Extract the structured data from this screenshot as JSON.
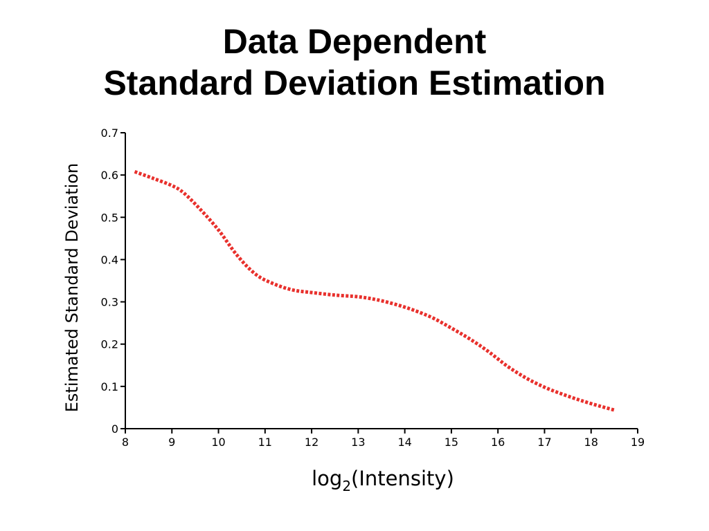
{
  "slide": {
    "title_line1": "Data Dependent",
    "title_line2": "Standard Deviation Estimation"
  },
  "colors": {
    "series": "#e8302c",
    "axis": "#000000"
  },
  "chart_data": {
    "type": "line",
    "title": "Data Dependent Standard Deviation Estimation",
    "xlabel_main": "log",
    "xlabel_sub": "2",
    "xlabel_rest": "(Intensity)",
    "xlabel": "log2(Intensity)",
    "ylabel": "Estimated Standard Deviation",
    "xlim": [
      8,
      19
    ],
    "ylim": [
      0,
      0.7
    ],
    "xticks": [
      8,
      9,
      10,
      11,
      12,
      13,
      14,
      15,
      16,
      17,
      18,
      19
    ],
    "xtick_labels": [
      "8",
      "9",
      "10",
      "11",
      "12",
      "13",
      "14",
      "15",
      "16",
      "17",
      "18",
      "19"
    ],
    "yticks": [
      0,
      0.1,
      0.2,
      0.3,
      0.4,
      0.5,
      0.6,
      0.7
    ],
    "ytick_labels": [
      "0",
      "0.1",
      "0.2",
      "0.3",
      "0.4",
      "0.5",
      "0.6",
      "0.7"
    ],
    "grid": false,
    "series": [
      {
        "name": "Estimated Standard Deviation",
        "line_style": "dotted",
        "x": [
          8.2,
          8.6,
          9.0,
          9.25,
          9.6,
          10.0,
          10.4,
          10.8,
          11.2,
          11.6,
          12.0,
          12.5,
          13.0,
          13.4,
          13.8,
          14.2,
          14.6,
          15.0,
          15.4,
          15.8,
          16.2,
          16.6,
          17.0,
          17.4,
          17.8,
          18.2,
          18.5
        ],
        "y": [
          0.608,
          0.592,
          0.575,
          0.558,
          0.52,
          0.47,
          0.41,
          0.365,
          0.342,
          0.328,
          0.322,
          0.316,
          0.312,
          0.305,
          0.294,
          0.28,
          0.262,
          0.238,
          0.212,
          0.182,
          0.148,
          0.12,
          0.098,
          0.081,
          0.066,
          0.053,
          0.044
        ]
      }
    ]
  }
}
